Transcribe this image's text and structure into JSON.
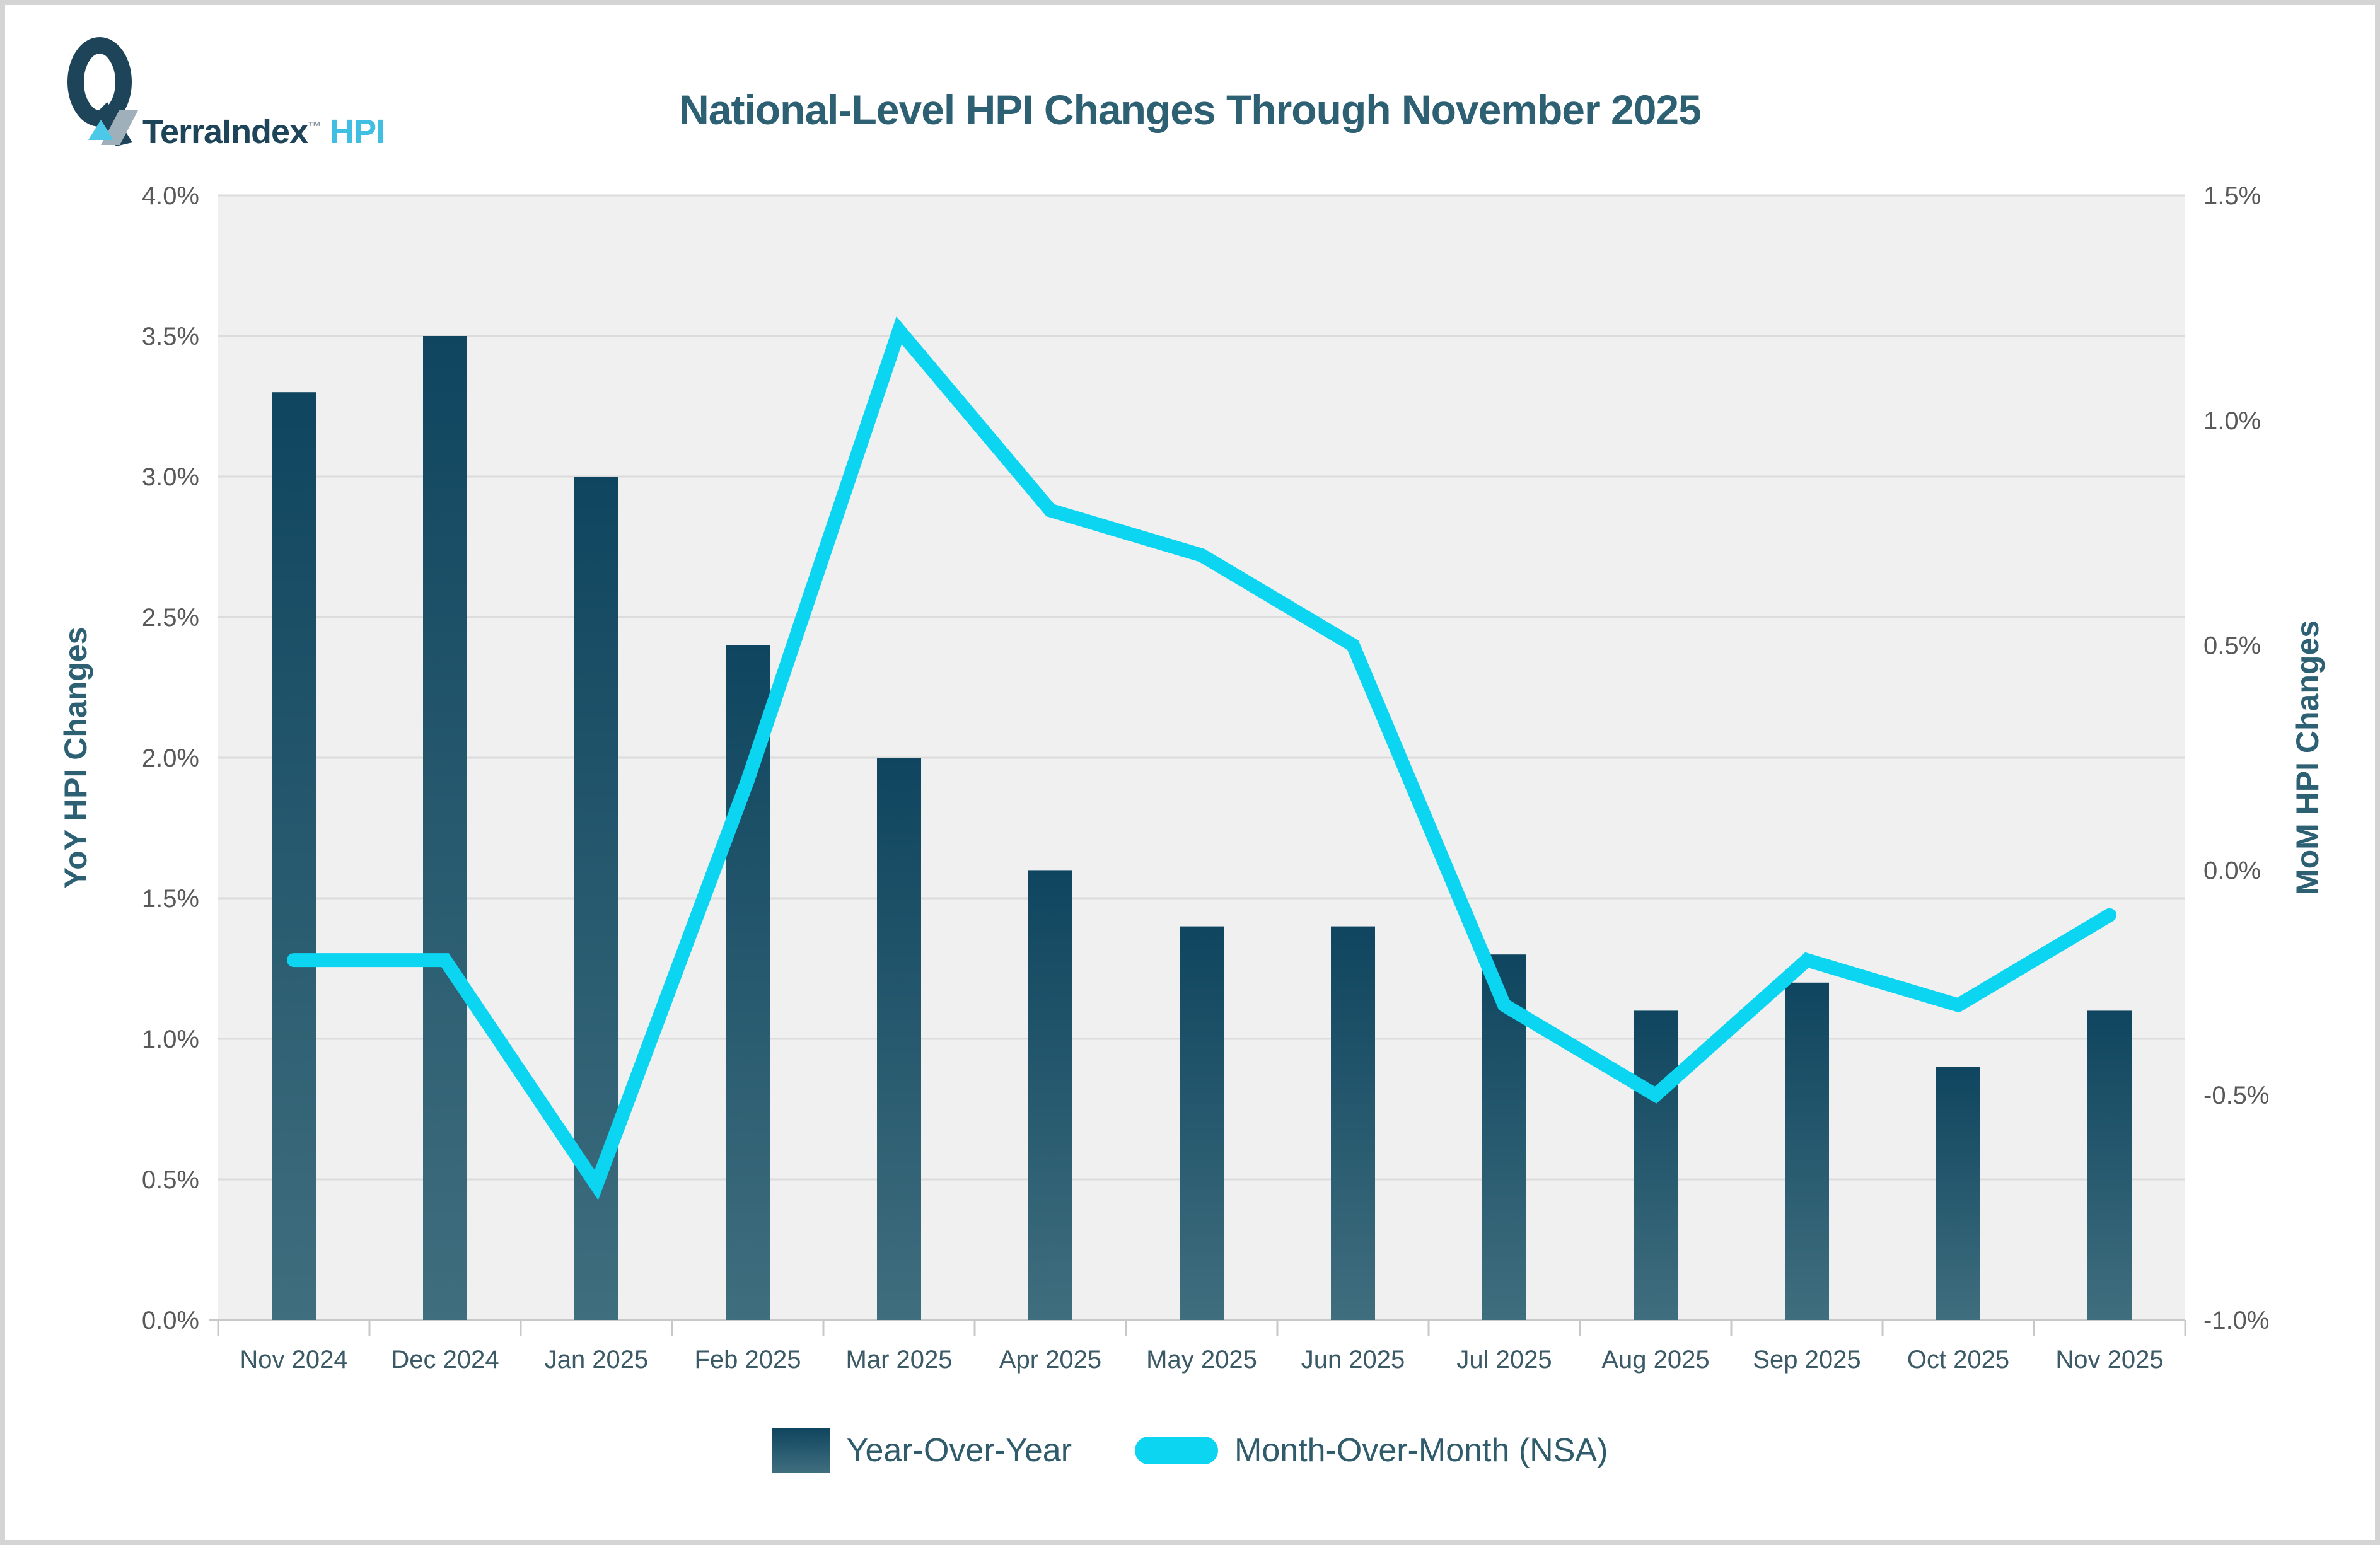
{
  "logo": {
    "brand": "TerraIndex",
    "tm": "™",
    "product": "HPI"
  },
  "title": "National-Level HPI Changes Through November 2025",
  "left_axis": {
    "title": "YoY HPI Changes",
    "ticks": [
      "0.0%",
      "0.5%",
      "1.0%",
      "1.5%",
      "2.0%",
      "2.5%",
      "3.0%",
      "3.5%",
      "4.0%"
    ]
  },
  "right_axis": {
    "title": "MoM HPI Changes",
    "ticks": [
      "-1.0%",
      "-0.5%",
      "0.0%",
      "0.5%",
      "1.0%",
      "1.5%"
    ]
  },
  "legend": [
    {
      "label": "Year-Over-Year",
      "type": "bar"
    },
    {
      "label": "Month-Over-Month (NSA)",
      "type": "line"
    }
  ],
  "colors": {
    "bar_top": "#0f455f",
    "bar_bottom": "#3f6e7e",
    "line": "#0cd5f2",
    "plot_bg": "#f0f0f1",
    "grid": "#dcdcdc",
    "axis": "#c8c8c8",
    "tick_label": "#595959",
    "month_label": "#3b5a66"
  },
  "chart_data": {
    "type": "bar+line",
    "title": "National-Level HPI Changes Through November 2025",
    "categories": [
      "Nov 2024",
      "Dec 2024",
      "Jan 2025",
      "Feb 2025",
      "Mar 2025",
      "Apr 2025",
      "May 2025",
      "Jun 2025",
      "Jul 2025",
      "Aug 2025",
      "Sep 2025",
      "Oct 2025",
      "Nov 2025"
    ],
    "series": [
      {
        "name": "Year-Over-Year",
        "type": "bar",
        "axis": "left",
        "values": [
          3.3,
          3.5,
          3.0,
          2.4,
          2.0,
          1.6,
          1.4,
          1.4,
          1.3,
          1.1,
          1.2,
          0.9,
          1.1
        ]
      },
      {
        "name": "Month-Over-Month (NSA)",
        "type": "line",
        "axis": "right",
        "values": [
          -0.2,
          -0.2,
          -0.7,
          0.2,
          1.2,
          0.8,
          0.7,
          0.5,
          -0.3,
          -0.5,
          -0.2,
          -0.3,
          -0.1
        ]
      }
    ],
    "left_ylabel": "YoY HPI Changes",
    "right_ylabel": "MoM HPI Changes",
    "left_ylim": [
      0.0,
      4.0
    ],
    "right_ylim": [
      -1.0,
      1.5
    ],
    "grid": true,
    "legend_position": "bottom"
  }
}
